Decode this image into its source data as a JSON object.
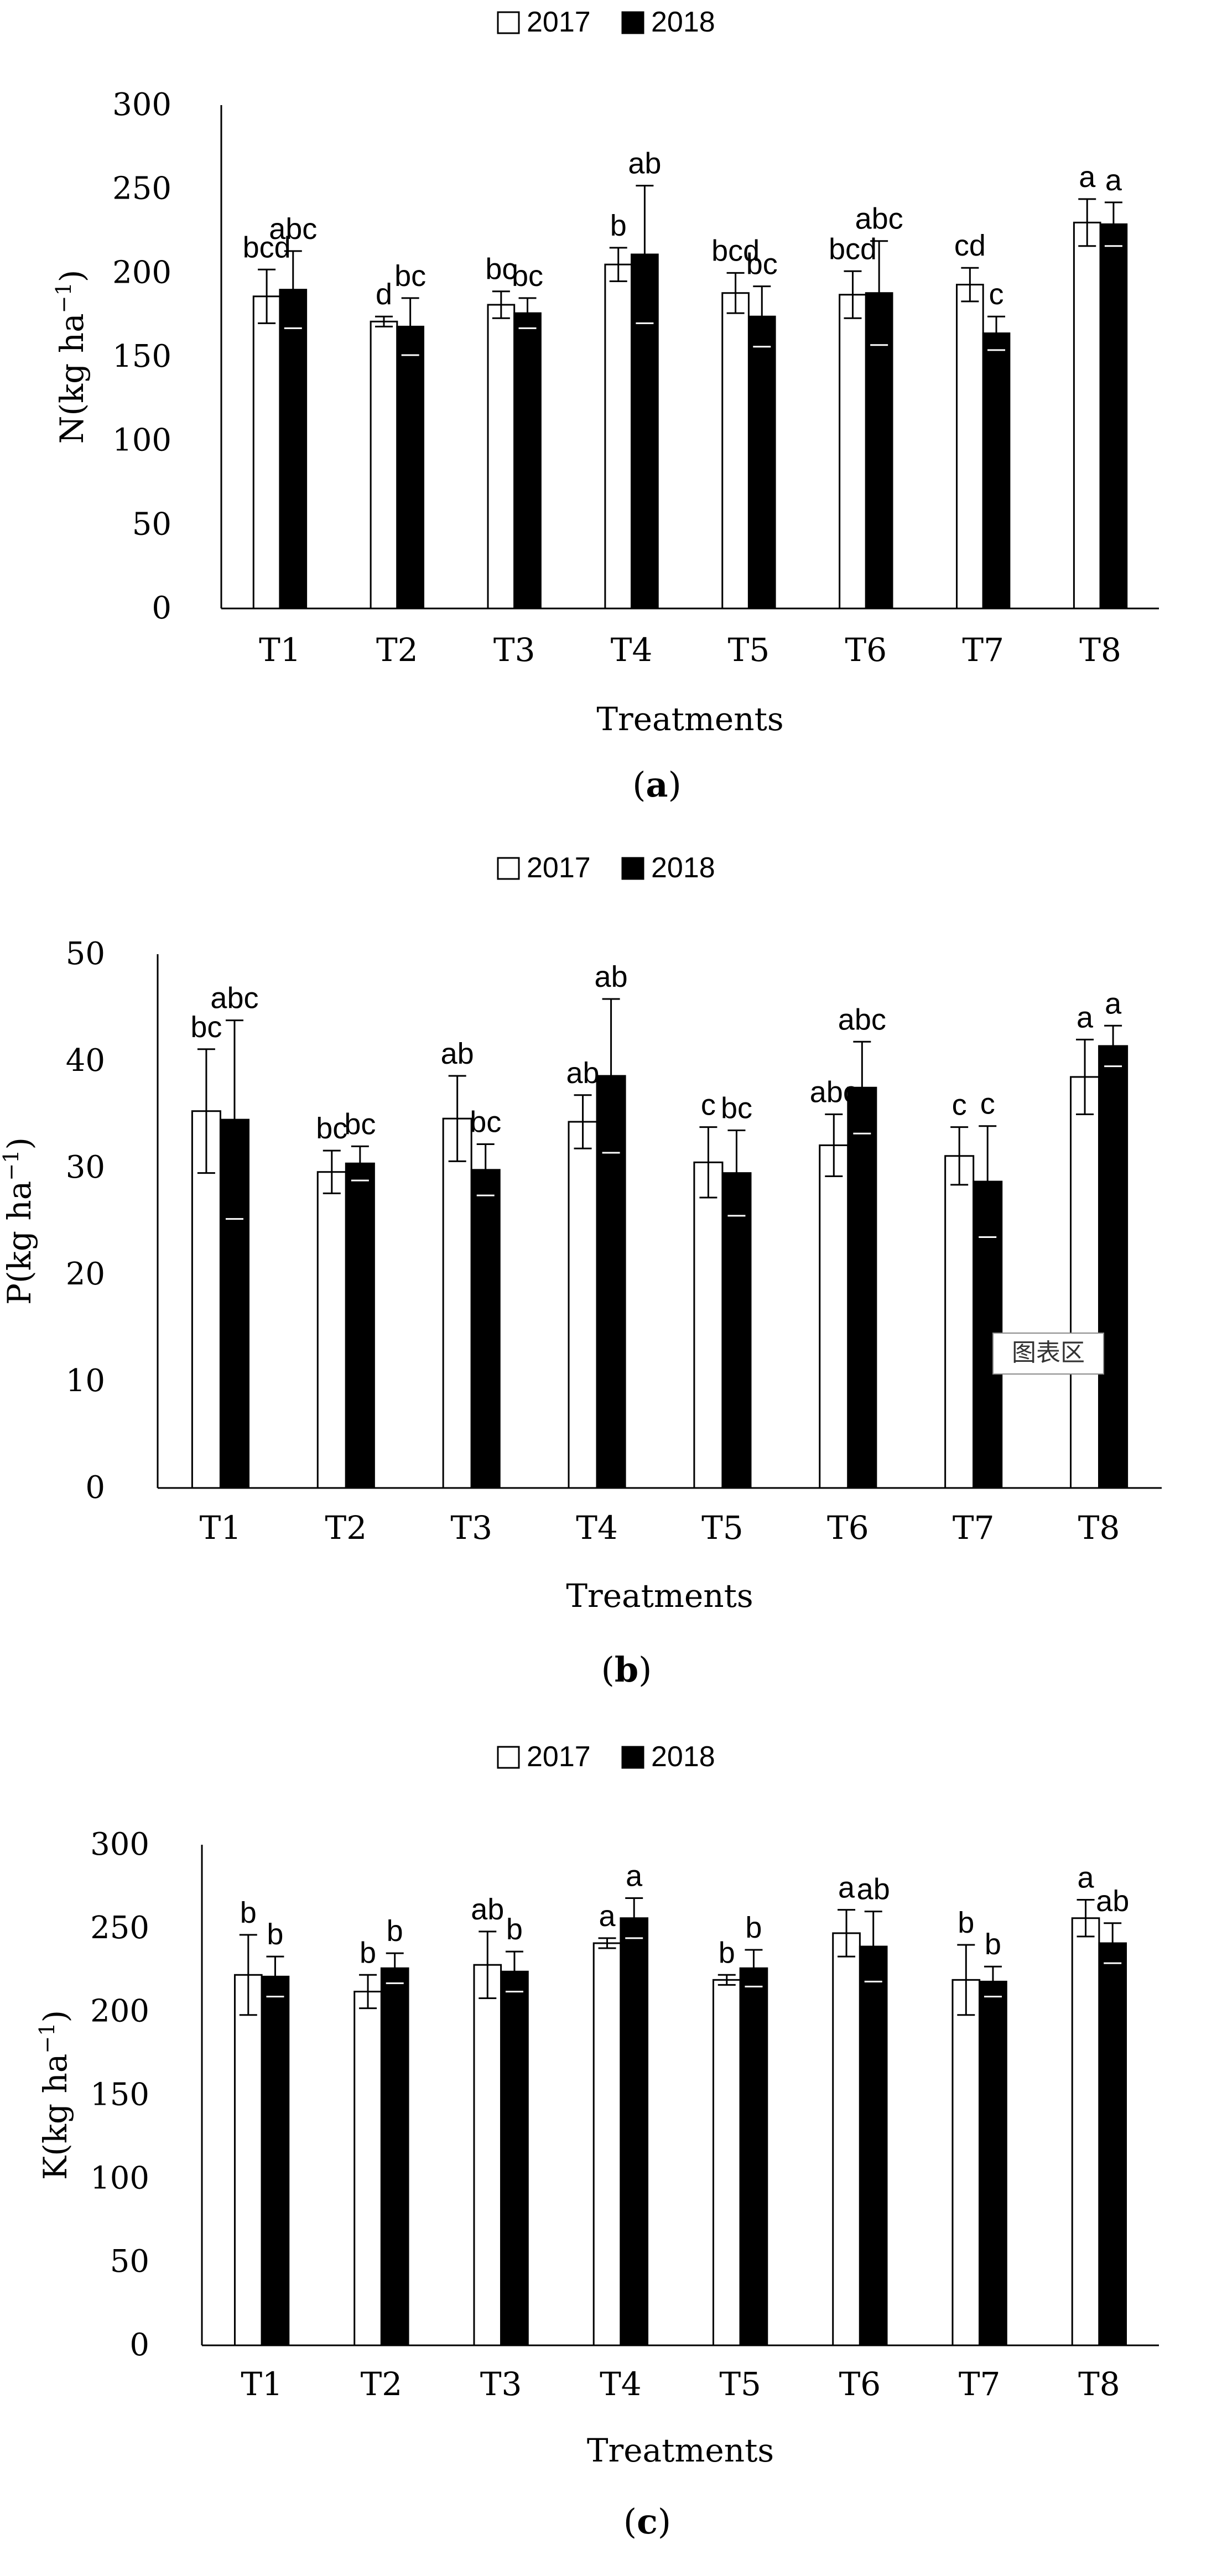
{
  "figure": {
    "legend": {
      "series_1": "2017",
      "series_2": "2018",
      "color_2017": "#ffffff",
      "color_2018": "#000000"
    },
    "tooltip": "图表区",
    "panels": [
      {
        "caption_open": "(",
        "caption_letter": "a",
        "caption_close": ")"
      },
      {
        "caption_open": "(",
        "caption_letter": "b",
        "caption_close": ")"
      },
      {
        "caption_open": "(",
        "caption_letter": "c",
        "caption_close": ")"
      }
    ]
  },
  "chart_data": [
    {
      "type": "bar",
      "title": "",
      "xlabel": "Treatments",
      "ylabel_main": "N(kg ha",
      "ylabel_sup": "−1",
      "ylabel_close": ")",
      "ylim": [
        0,
        300
      ],
      "yticks": [
        0,
        50,
        100,
        150,
        200,
        250,
        300
      ],
      "categories": [
        "T1",
        "T2",
        "T3",
        "T4",
        "T5",
        "T6",
        "T7",
        "T8"
      ],
      "series": [
        {
          "name": "2017",
          "values": [
            186,
            171,
            181,
            205,
            188,
            187,
            193,
            230
          ],
          "errors": [
            16,
            3,
            8,
            10,
            12,
            14,
            10,
            14
          ],
          "letters": [
            "bcd",
            "d",
            "bc",
            "b",
            "bcd",
            "bcd",
            "cd",
            "a"
          ]
        },
        {
          "name": "2018",
          "values": [
            190,
            168,
            176,
            211,
            174,
            188,
            164,
            229
          ],
          "errors": [
            23,
            17,
            9,
            41,
            18,
            31,
            10,
            13
          ],
          "letters": [
            "abc",
            "bc",
            "bc",
            "ab",
            "bc",
            "abc",
            "c",
            "a"
          ]
        }
      ]
    },
    {
      "type": "bar",
      "title": "",
      "xlabel": "Treatments",
      "ylabel_main": "P(kg ha",
      "ylabel_sup": "−1",
      "ylabel_close": ")",
      "ylim": [
        0,
        50
      ],
      "yticks": [
        0,
        10,
        20,
        30,
        40,
        50
      ],
      "categories": [
        "T1",
        "T2",
        "T3",
        "T4",
        "T5",
        "T6",
        "T7",
        "T8"
      ],
      "series": [
        {
          "name": "2017",
          "values": [
            35.3,
            29.6,
            34.6,
            34.3,
            30.5,
            32.1,
            31.1,
            38.5
          ],
          "errors": [
            5.8,
            2.0,
            4.0,
            2.5,
            3.3,
            2.9,
            2.7,
            3.5
          ],
          "letters": [
            "bc",
            "bc",
            "ab",
            "ab",
            "c",
            "abc",
            "c",
            "a"
          ]
        },
        {
          "name": "2018",
          "values": [
            34.5,
            30.4,
            29.8,
            38.6,
            29.5,
            37.5,
            28.7,
            41.4
          ],
          "errors": [
            9.3,
            1.6,
            2.4,
            7.2,
            4.0,
            4.3,
            5.2,
            1.9
          ],
          "letters": [
            "abc",
            "bc",
            "bc",
            "ab",
            "bc",
            "abc",
            "c",
            "a"
          ]
        }
      ]
    },
    {
      "type": "bar",
      "title": "",
      "xlabel": "Treatments",
      "ylabel_main": "K(kg ha",
      "ylabel_sup": "−1",
      "ylabel_close": ")",
      "ylim": [
        0,
        300
      ],
      "yticks": [
        0,
        50,
        100,
        150,
        200,
        250,
        300
      ],
      "categories": [
        "T1",
        "T2",
        "T3",
        "T4",
        "T5",
        "T6",
        "T7",
        "T8"
      ],
      "series": [
        {
          "name": "2017",
          "values": [
            222,
            212,
            228,
            241,
            219,
            247,
            219,
            256
          ],
          "errors": [
            24,
            10,
            20,
            3,
            3,
            14,
            21,
            11
          ],
          "letters": [
            "b",
            "b",
            "ab",
            "a",
            "b",
            "a",
            "b",
            "a"
          ]
        },
        {
          "name": "2018",
          "values": [
            221,
            226,
            224,
            256,
            226,
            239,
            218,
            241
          ],
          "errors": [
            12,
            9,
            12,
            12,
            11,
            21,
            9,
            12
          ],
          "letters": [
            "b",
            "b",
            "b",
            "a",
            "b",
            "ab",
            "b",
            "ab"
          ]
        }
      ]
    }
  ]
}
